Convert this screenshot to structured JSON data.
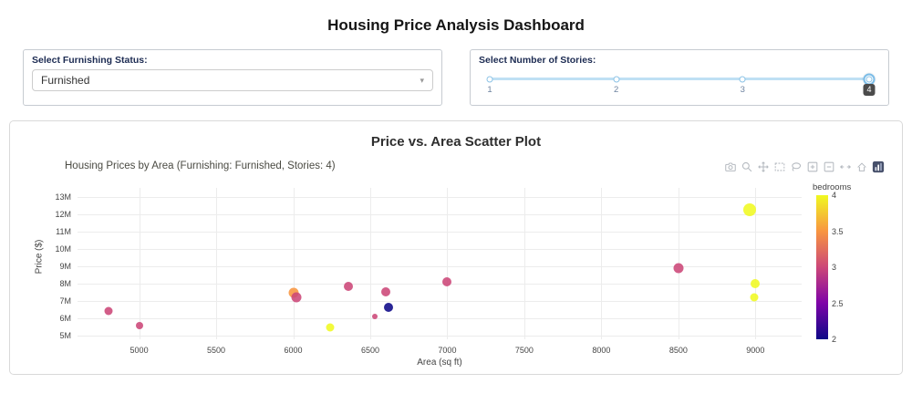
{
  "page": {
    "title": "Housing Price Analysis Dashboard"
  },
  "controls": {
    "furnishing": {
      "label": "Select Furnishing Status:",
      "value": "Furnished"
    },
    "stories": {
      "label": "Select Number of Stories:",
      "marks": [
        "1",
        "2",
        "3",
        "4"
      ],
      "value": "4"
    }
  },
  "card": {
    "title": "Price vs. Area Scatter Plot"
  },
  "modebar": {
    "icons": [
      "camera-icon",
      "zoom-icon",
      "pan-icon",
      "box-select-icon",
      "lasso-select-icon",
      "zoom-in-icon",
      "zoom-out-icon",
      "autoscale-icon",
      "reset-axes-icon",
      "plotly-logo-icon"
    ]
  },
  "chart_data": {
    "type": "scatter",
    "title": "Housing Prices by Area (Furnishing: Furnished, Stories: 4)",
    "xlabel": "Area (sq ft)",
    "ylabel": "Price ($)",
    "xlim": [
      4600,
      9300
    ],
    "ylim_millions": [
      4.8,
      13.5
    ],
    "grid": true,
    "background": "#ffffff",
    "x_ticks": [
      5000,
      5500,
      6000,
      6500,
      7000,
      7500,
      8000,
      8500,
      9000
    ],
    "y_ticks": [
      {
        "value": 5,
        "label": "5M"
      },
      {
        "value": 6,
        "label": "6M"
      },
      {
        "value": 7,
        "label": "7M"
      },
      {
        "value": 8,
        "label": "8M"
      },
      {
        "value": 9,
        "label": "9M"
      },
      {
        "value": 10,
        "label": "10M"
      },
      {
        "value": 11,
        "label": "11M"
      },
      {
        "value": 12,
        "label": "12M"
      },
      {
        "value": 13,
        "label": "13M"
      }
    ],
    "points": [
      {
        "area": 4800,
        "price_m": 6.4,
        "bedrooms": 3,
        "size": 9
      },
      {
        "area": 5000,
        "price_m": 5.6,
        "bedrooms": 3,
        "size": 8
      },
      {
        "area": 6000,
        "price_m": 7.45,
        "bedrooms": 3.5,
        "size": 11
      },
      {
        "area": 6020,
        "price_m": 7.2,
        "bedrooms": 3,
        "size": 11
      },
      {
        "area": 6240,
        "price_m": 5.5,
        "bedrooms": 4,
        "size": 9
      },
      {
        "area": 6360,
        "price_m": 7.85,
        "bedrooms": 3,
        "size": 10
      },
      {
        "area": 6530,
        "price_m": 6.1,
        "bedrooms": 3,
        "size": 6
      },
      {
        "area": 6600,
        "price_m": 7.5,
        "bedrooms": 3,
        "size": 10
      },
      {
        "area": 6620,
        "price_m": 6.65,
        "bedrooms": 2,
        "size": 10
      },
      {
        "area": 7000,
        "price_m": 8.1,
        "bedrooms": 3,
        "size": 10
      },
      {
        "area": 8500,
        "price_m": 8.9,
        "bedrooms": 3,
        "size": 11
      },
      {
        "area": 8960,
        "price_m": 12.25,
        "bedrooms": 4,
        "size": 14
      },
      {
        "area": 9000,
        "price_m": 8.0,
        "bedrooms": 4,
        "size": 10
      },
      {
        "area": 8990,
        "price_m": 7.2,
        "bedrooms": 4,
        "size": 9
      }
    ],
    "colorbar": {
      "label": "bedrooms",
      "min": 2,
      "max": 4,
      "ticks": [
        2,
        2.5,
        3,
        3.5,
        4
      ],
      "colorscale": [
        "#0d0887",
        "#7e03a8",
        "#cc4778",
        "#f89540",
        "#f0f921"
      ]
    }
  }
}
